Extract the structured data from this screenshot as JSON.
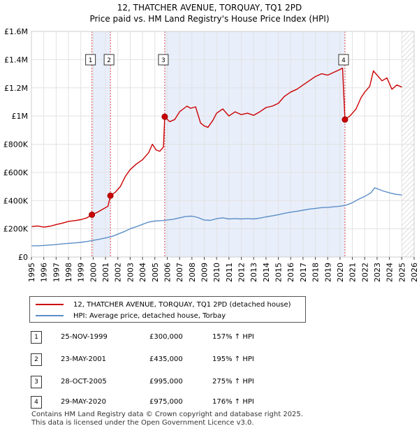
{
  "chart_data": {
    "type": "line",
    "title": "12, THATCHER AVENUE, TORQUAY, TQ1 2PD",
    "subtitle": "Price paid vs. HM Land Registry's House Price Index (HPI)",
    "xlim": [
      1995,
      2026
    ],
    "ylim": [
      0,
      1600000
    ],
    "x_ticks": [
      "1995",
      "1996",
      "1997",
      "1998",
      "1999",
      "2000",
      "2001",
      "2002",
      "2003",
      "2004",
      "2005",
      "2006",
      "2007",
      "2008",
      "2009",
      "2010",
      "2011",
      "2012",
      "2013",
      "2014",
      "2015",
      "2016",
      "2017",
      "2018",
      "2019",
      "2020",
      "2021",
      "2022",
      "2023",
      "2024",
      "2025",
      "2026"
    ],
    "y_ticks": [
      {
        "value": 0,
        "label": "£0"
      },
      {
        "value": 200000,
        "label": "£200K"
      },
      {
        "value": 400000,
        "label": "£400K"
      },
      {
        "value": 600000,
        "label": "£600K"
      },
      {
        "value": 800000,
        "label": "£800K"
      },
      {
        "value": 1000000,
        "label": "£1M"
      },
      {
        "value": 1200000,
        "label": "£1.2M"
      },
      {
        "value": 1400000,
        "label": "£1.4M"
      },
      {
        "value": 1600000,
        "label": "£1.6M"
      }
    ],
    "shaded_ranges": [
      [
        1999.9,
        2001.4
      ],
      [
        2005.8,
        2020.4
      ]
    ],
    "hatch_from": 2025.0,
    "series": [
      {
        "name": "12, THATCHER AVENUE, TORQUAY, TQ1 2PD (detached house)",
        "color": "#cc0000",
        "points": [
          [
            1995.0,
            215000
          ],
          [
            1995.5,
            220000
          ],
          [
            1996.0,
            212000
          ],
          [
            1996.5,
            218000
          ],
          [
            1997.0,
            230000
          ],
          [
            1997.5,
            240000
          ],
          [
            1998.0,
            252000
          ],
          [
            1998.5,
            258000
          ],
          [
            1999.0,
            265000
          ],
          [
            1999.5,
            278000
          ],
          [
            1999.9,
            300000
          ],
          [
            2000.3,
            315000
          ],
          [
            2000.8,
            340000
          ],
          [
            2001.2,
            360000
          ],
          [
            2001.4,
            435000
          ],
          [
            2001.8,
            460000
          ],
          [
            2002.2,
            500000
          ],
          [
            2002.6,
            570000
          ],
          [
            2003.0,
            620000
          ],
          [
            2003.5,
            660000
          ],
          [
            2004.0,
            690000
          ],
          [
            2004.5,
            740000
          ],
          [
            2004.8,
            800000
          ],
          [
            2005.1,
            760000
          ],
          [
            2005.4,
            750000
          ],
          [
            2005.7,
            780000
          ],
          [
            2005.8,
            995000
          ],
          [
            2006.2,
            960000
          ],
          [
            2006.6,
            975000
          ],
          [
            2007.0,
            1030000
          ],
          [
            2007.3,
            1050000
          ],
          [
            2007.6,
            1070000
          ],
          [
            2007.9,
            1055000
          ],
          [
            2008.3,
            1065000
          ],
          [
            2008.7,
            950000
          ],
          [
            2009.0,
            930000
          ],
          [
            2009.3,
            920000
          ],
          [
            2009.7,
            970000
          ],
          [
            2010.0,
            1020000
          ],
          [
            2010.5,
            1050000
          ],
          [
            2011.0,
            1000000
          ],
          [
            2011.5,
            1030000
          ],
          [
            2012.0,
            1010000
          ],
          [
            2012.5,
            1020000
          ],
          [
            2013.0,
            1005000
          ],
          [
            2013.5,
            1030000
          ],
          [
            2014.0,
            1060000
          ],
          [
            2014.5,
            1070000
          ],
          [
            2015.0,
            1090000
          ],
          [
            2015.5,
            1140000
          ],
          [
            2016.0,
            1170000
          ],
          [
            2016.5,
            1190000
          ],
          [
            2017.0,
            1220000
          ],
          [
            2017.5,
            1250000
          ],
          [
            2018.0,
            1280000
          ],
          [
            2018.5,
            1300000
          ],
          [
            2019.0,
            1290000
          ],
          [
            2019.5,
            1310000
          ],
          [
            2020.0,
            1330000
          ],
          [
            2020.2,
            1340000
          ],
          [
            2020.4,
            975000
          ],
          [
            2020.8,
            1000000
          ],
          [
            2021.3,
            1050000
          ],
          [
            2021.7,
            1130000
          ],
          [
            2022.0,
            1170000
          ],
          [
            2022.4,
            1210000
          ],
          [
            2022.7,
            1320000
          ],
          [
            2023.0,
            1290000
          ],
          [
            2023.4,
            1250000
          ],
          [
            2023.8,
            1270000
          ],
          [
            2024.2,
            1190000
          ],
          [
            2024.6,
            1220000
          ],
          [
            2025.0,
            1205000
          ]
        ]
      },
      {
        "name": "HPI: Average price, detached house, Torbay",
        "color": "#5b8ec8",
        "points": [
          [
            1995.0,
            80000
          ],
          [
            1995.5,
            80000
          ],
          [
            1996.0,
            82000
          ],
          [
            1996.5,
            85000
          ],
          [
            1997.0,
            88000
          ],
          [
            1997.5,
            93000
          ],
          [
            1998.0,
            97000
          ],
          [
            1998.5,
            100000
          ],
          [
            1999.0,
            104000
          ],
          [
            1999.5,
            110000
          ],
          [
            2000.0,
            118000
          ],
          [
            2000.5,
            126000
          ],
          [
            2001.0,
            135000
          ],
          [
            2001.5,
            145000
          ],
          [
            2002.0,
            162000
          ],
          [
            2002.5,
            180000
          ],
          [
            2003.0,
            200000
          ],
          [
            2003.5,
            215000
          ],
          [
            2004.0,
            232000
          ],
          [
            2004.5,
            248000
          ],
          [
            2005.0,
            255000
          ],
          [
            2005.5,
            258000
          ],
          [
            2006.0,
            262000
          ],
          [
            2006.5,
            268000
          ],
          [
            2007.0,
            278000
          ],
          [
            2007.5,
            288000
          ],
          [
            2008.0,
            290000
          ],
          [
            2008.5,
            280000
          ],
          [
            2009.0,
            262000
          ],
          [
            2009.5,
            260000
          ],
          [
            2010.0,
            272000
          ],
          [
            2010.5,
            278000
          ],
          [
            2011.0,
            270000
          ],
          [
            2011.5,
            272000
          ],
          [
            2012.0,
            270000
          ],
          [
            2012.5,
            272000
          ],
          [
            2013.0,
            270000
          ],
          [
            2013.5,
            276000
          ],
          [
            2014.0,
            285000
          ],
          [
            2014.5,
            292000
          ],
          [
            2015.0,
            300000
          ],
          [
            2015.5,
            310000
          ],
          [
            2016.0,
            318000
          ],
          [
            2016.5,
            324000
          ],
          [
            2017.0,
            332000
          ],
          [
            2017.5,
            340000
          ],
          [
            2018.0,
            345000
          ],
          [
            2018.5,
            350000
          ],
          [
            2019.0,
            352000
          ],
          [
            2019.5,
            356000
          ],
          [
            2020.0,
            360000
          ],
          [
            2020.5,
            368000
          ],
          [
            2021.0,
            385000
          ],
          [
            2021.5,
            410000
          ],
          [
            2022.0,
            430000
          ],
          [
            2022.5,
            455000
          ],
          [
            2022.8,
            490000
          ],
          [
            2023.0,
            485000
          ],
          [
            2023.5,
            468000
          ],
          [
            2024.0,
            455000
          ],
          [
            2024.5,
            445000
          ],
          [
            2025.0,
            440000
          ]
        ]
      }
    ],
    "sales": [
      {
        "marker": "1",
        "x": 1999.9,
        "price": 300000
      },
      {
        "marker": "2",
        "x": 2001.4,
        "price": 435000
      },
      {
        "marker": "3",
        "x": 2005.8,
        "price": 995000
      },
      {
        "marker": "4",
        "x": 2020.4,
        "price": 975000
      }
    ]
  },
  "legend": [
    {
      "label": "12, THATCHER AVENUE, TORQUAY, TQ1 2PD (detached house)",
      "color": "#cc0000"
    },
    {
      "label": "HPI: Average price, detached house, Torbay",
      "color": "#5b8ec8"
    }
  ],
  "sales_table": [
    {
      "num": "1",
      "date": "25-NOV-1999",
      "price": "£300,000",
      "hpi": "157% ↑ HPI"
    },
    {
      "num": "2",
      "date": "23-MAY-2001",
      "price": "£435,000",
      "hpi": "195% ↑ HPI"
    },
    {
      "num": "3",
      "date": "28-OCT-2005",
      "price": "£995,000",
      "hpi": "275% ↑ HPI"
    },
    {
      "num": "4",
      "date": "29-MAY-2020",
      "price": "£975,000",
      "hpi": "176% ↑ HPI"
    }
  ],
  "footer": {
    "line1": "Contains HM Land Registry data © Crown copyright and database right 2025.",
    "line2": "This data is licensed under the Open Government Licence v3.0."
  }
}
